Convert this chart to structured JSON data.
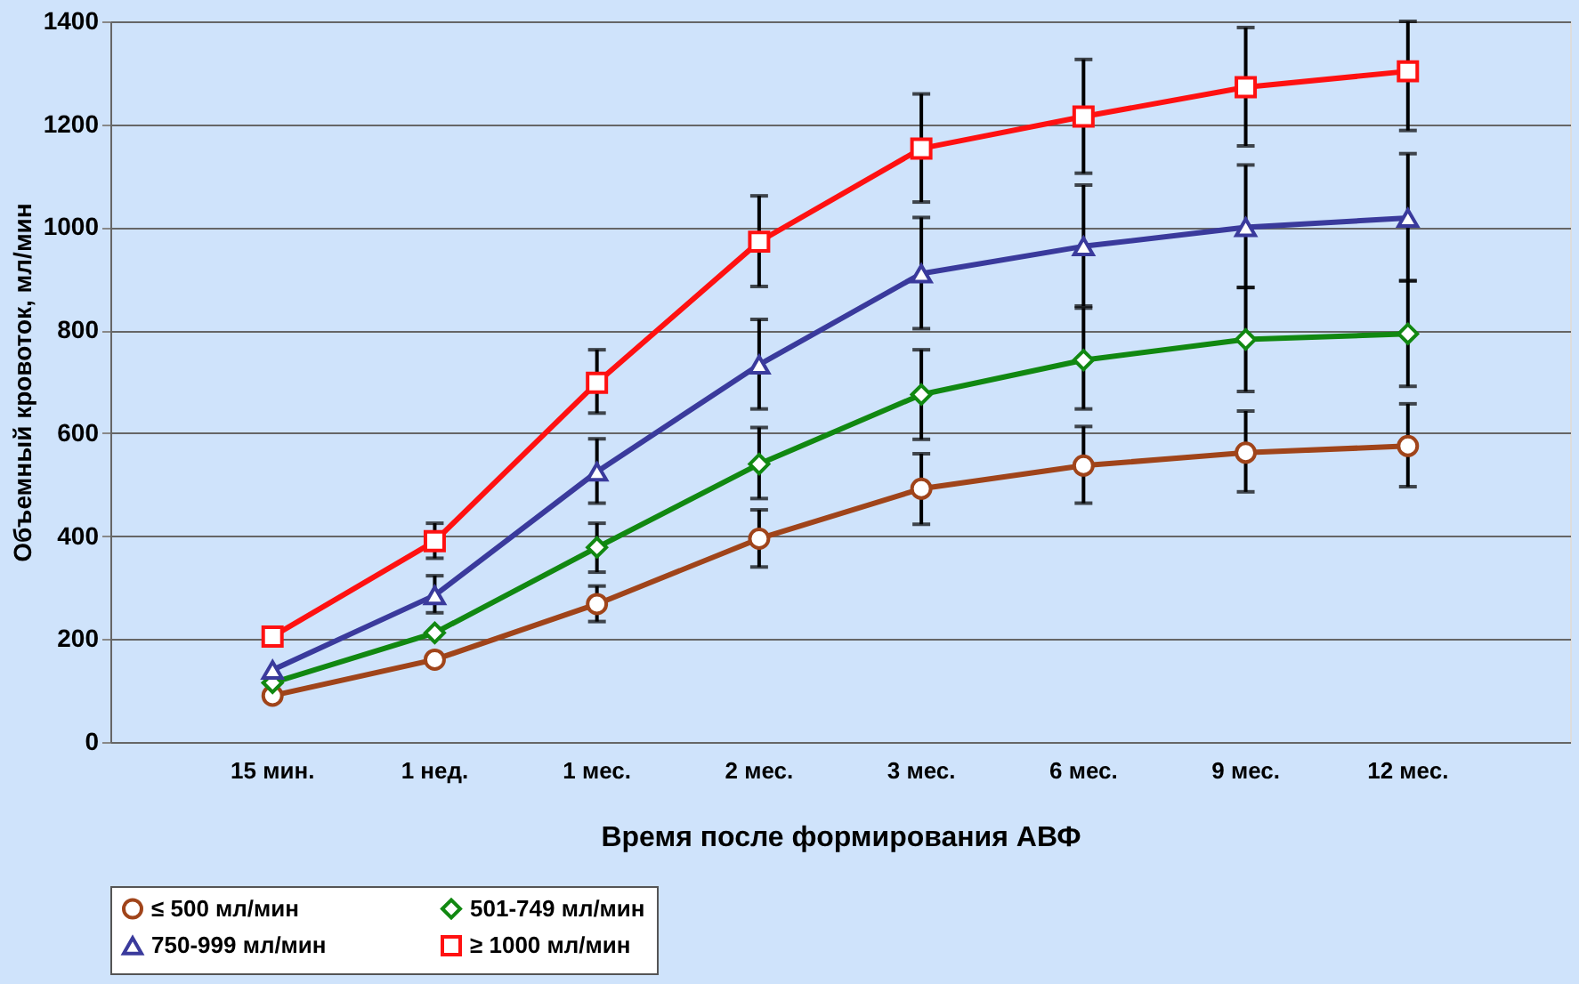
{
  "chart_data": {
    "type": "line",
    "xlabel": "Время после формирования АВФ",
    "ylabel": "Объемный кровоток, мл/мин",
    "categories": [
      "15 мин.",
      "1 нед.",
      "1 мес.",
      "2 мес.",
      "3 мес.",
      "6 мес.",
      "9 мес.",
      "12 мес."
    ],
    "series": [
      {
        "name": "≤ 500 мл/мин",
        "color": "#a0441a",
        "marker": "circle",
        "values": [
          90,
          160,
          268,
          395,
          492,
          537,
          562,
          575
        ],
        "errors": [
          null,
          null,
          [
            234,
            303
          ],
          [
            340,
            451
          ],
          [
            423,
            560
          ],
          [
            464,
            613
          ],
          [
            486,
            643
          ],
          [
            496,
            657
          ]
        ]
      },
      {
        "name": "501-749 мл/мин",
        "color": "#118811",
        "marker": "diamond",
        "values": [
          115,
          212,
          378,
          540,
          675,
          742,
          782,
          793
        ],
        "errors": [
          null,
          null,
          [
            330,
            425
          ],
          [
            473,
            611
          ],
          [
            588,
            762
          ],
          [
            647,
            843
          ],
          [
            681,
            883
          ],
          [
            691,
            896
          ]
        ]
      },
      {
        "name": "750-999 мл/мин",
        "color": "#3a3a9c",
        "marker": "triangle",
        "values": [
          140,
          285,
          525,
          733,
          910,
          963,
          1000,
          1018
        ],
        "errors": [
          null,
          [
            251,
            323
          ],
          [
            464,
            589
          ],
          [
            647,
            821
          ],
          [
            803,
            1019
          ],
          [
            847,
            1082
          ],
          [
            883,
            1121
          ],
          [
            896,
            1143
          ]
        ]
      },
      {
        "name": "≥ 1000 мл/мин",
        "color": "#ff1111",
        "marker": "square",
        "values": [
          205,
          390,
          698,
          972,
          1153,
          1215,
          1272,
          1303
        ],
        "errors": [
          null,
          [
            357,
            425
          ],
          [
            639,
            762
          ],
          [
            885,
            1061
          ],
          [
            1049,
            1259
          ],
          [
            1105,
            1326
          ],
          [
            1158,
            1388
          ],
          [
            1188,
            1400
          ]
        ]
      }
    ],
    "ylim": [
      0,
      1400
    ],
    "yticks": [
      0,
      200,
      400,
      600,
      800,
      1000,
      1200,
      1400
    ],
    "grid": "y",
    "legend": "bottom",
    "line_style": "solid"
  }
}
